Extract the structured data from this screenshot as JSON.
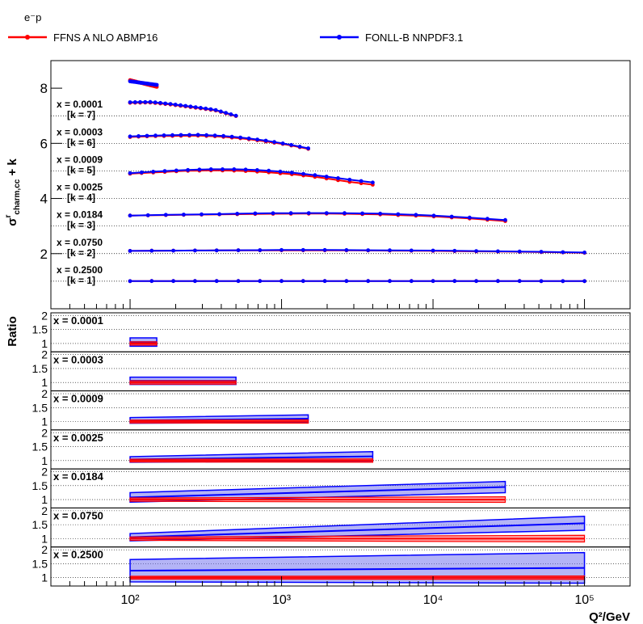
{
  "chart_data": {
    "type": "line",
    "title": "e⁻p",
    "legend": [
      {
        "label": "FFNS A NLO ABMP16",
        "color": "#ff0000"
      },
      {
        "label": "FONLL-B NNPDF3.1",
        "color": "#0000ff"
      }
    ],
    "xlabel": "Q²/GeV",
    "ylabel_main": "σʳcharm,cc + k",
    "ylabel_main_base": "σ",
    "ylabel_main_sup": "r",
    "ylabel_main_sub": "charm,cc",
    "ylabel_main_suffix": " + k",
    "ylabel_ratio": "Ratio",
    "x_scale": "log",
    "xlim": [
      30,
      200000
    ],
    "x_tick_labels": [
      "10²",
      "10³",
      "10⁴",
      "10⁵"
    ],
    "main_ylim": [
      0,
      9
    ],
    "main_yticks": [
      "2",
      "4",
      "6",
      "8"
    ],
    "ratio_ylim": [
      0.7,
      2.1
    ],
    "ratio_yticks": [
      "1",
      "1.5",
      "2"
    ],
    "series_colors": {
      "ffns": "#ff0000",
      "fonll": "#0000ff",
      "fonll_band": "#7777ee"
    },
    "bins": [
      {
        "x_label": "x = 0.0001",
        "k_label": "[k = 7]",
        "k": 7,
        "q2_max": 150,
        "ffns": [
          1.29,
          1.05
        ],
        "fonll": [
          1.25,
          1.12
        ],
        "ratio_fonll": [
          1.05,
          1.05
        ],
        "ratio_fonll_band": [
          0.15,
          0.15
        ],
        "ratio_ffns_band": [
          0.06,
          0.06
        ]
      },
      {
        "x_label": "x = 0.0003",
        "k_label": "[k = 6]",
        "k": 6,
        "q2_max": 500,
        "ffns": [
          1.47,
          1.48,
          1.4,
          1.3,
          1.2,
          0.99
        ],
        "fonll": [
          1.49,
          1.5,
          1.42,
          1.32,
          1.22,
          1.0
        ],
        "ratio_fonll": [
          1.06,
          1.06
        ],
        "ratio_fonll_band": [
          0.13,
          0.13
        ],
        "ratio_ffns_band": [
          0.06,
          0.06
        ]
      },
      {
        "x_label": "x = 0.0009",
        "k_label": "[k = 5]",
        "k": 5,
        "q2_max": 1500,
        "ffns": [
          1.23,
          1.26,
          1.27,
          1.28,
          1.25,
          1.18,
          1.08,
          0.96,
          0.8
        ],
        "fonll": [
          1.25,
          1.28,
          1.3,
          1.31,
          1.28,
          1.21,
          1.11,
          0.98,
          0.82
        ],
        "ratio_fonll": [
          1.04,
          1.1
        ],
        "ratio_fonll_band": [
          0.1,
          0.14
        ],
        "ratio_ffns_band": [
          0.05,
          0.06
        ]
      },
      {
        "x_label": "x = 0.0025",
        "k_label": "[k = 4]",
        "k": 4,
        "q2_max": 4000,
        "ffns": [
          0.9,
          0.95,
          1.0,
          1.02,
          1.01,
          0.96,
          0.88,
          0.77,
          0.62,
          0.5
        ],
        "fonll": [
          0.92,
          0.98,
          1.03,
          1.06,
          1.06,
          1.02,
          0.94,
          0.83,
          0.7,
          0.58
        ],
        "ratio_fonll": [
          1.04,
          1.15
        ],
        "ratio_fonll_band": [
          0.1,
          0.17
        ],
        "ratio_ffns_band": [
          0.05,
          0.06
        ]
      },
      {
        "x_label": "x = 0.0184",
        "k_label": "[k = 3]",
        "k": 3,
        "q2_max": 30000,
        "ffns": [
          0.38,
          0.4,
          0.42,
          0.44,
          0.45,
          0.45,
          0.42,
          0.37,
          0.29,
          0.18
        ],
        "fonll": [
          0.38,
          0.41,
          0.43,
          0.46,
          0.47,
          0.47,
          0.45,
          0.4,
          0.32,
          0.22
        ],
        "ratio_fonll": [
          1.08,
          1.45
        ],
        "ratio_fonll_band": [
          0.17,
          0.2
        ],
        "ratio_ffns_band": [
          0.06,
          0.1
        ]
      },
      {
        "x_label": "x = 0.0750",
        "k_label": "[k = 2]",
        "k": 2,
        "q2_max": 100000,
        "ffns": [
          0.1,
          0.11,
          0.12,
          0.12,
          0.12,
          0.11,
          0.1,
          0.08,
          0.06,
          0.03
        ],
        "fonll": [
          0.1,
          0.11,
          0.12,
          0.13,
          0.13,
          0.12,
          0.11,
          0.09,
          0.07,
          0.04
        ],
        "ratio_fonll": [
          1.05,
          1.55
        ],
        "ratio_fonll_band": [
          0.13,
          0.25
        ],
        "ratio_ffns_band": [
          0.06,
          0.12
        ]
      },
      {
        "x_label": "x = 0.2500",
        "k_label": "[k = 1]",
        "k": 1,
        "q2_max": 100000,
        "ffns": [
          0.004,
          0.005,
          0.006,
          0.007,
          0.007,
          0.006,
          0.006,
          0.005,
          0.004,
          0.003
        ],
        "fonll": [
          0.004,
          0.005,
          0.006,
          0.007,
          0.007,
          0.006,
          0.006,
          0.005,
          0.004,
          0.003
        ],
        "ratio_fonll": [
          1.25,
          1.35
        ],
        "ratio_fonll_band": [
          0.4,
          0.55
        ],
        "ratio_ffns_band": [
          0.05,
          0.06
        ]
      }
    ]
  }
}
